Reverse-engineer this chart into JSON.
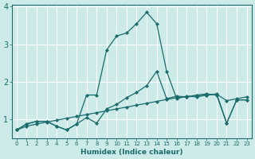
{
  "xlabel": "Humidex (Indice chaleur)",
  "bg_color": "#cceae8",
  "line_color": "#1a6b6b",
  "grid_color": "#ffffff",
  "xmin": -0.5,
  "xmax": 23.5,
  "ymin": 0.5,
  "ymax": 4.05,
  "yticks": [
    1,
    2,
    3,
    4
  ],
  "xticks": [
    0,
    1,
    2,
    3,
    4,
    5,
    6,
    7,
    8,
    9,
    10,
    11,
    12,
    13,
    14,
    15,
    16,
    17,
    18,
    19,
    20,
    21,
    22,
    23
  ],
  "line_straight_x": [
    0,
    1,
    2,
    3,
    4,
    5,
    6,
    7,
    8,
    9,
    10,
    11,
    12,
    13,
    14,
    15,
    16,
    17,
    18,
    19,
    20,
    21,
    22,
    23
  ],
  "line_straight_y": [
    0.72,
    0.82,
    0.88,
    0.93,
    0.98,
    1.03,
    1.08,
    1.13,
    1.18,
    1.23,
    1.28,
    1.33,
    1.38,
    1.43,
    1.48,
    1.53,
    1.58,
    1.6,
    1.62,
    1.65,
    1.67,
    1.5,
    1.55,
    1.6
  ],
  "line_mid_x": [
    0,
    1,
    2,
    3,
    4,
    5,
    6,
    7,
    8,
    9,
    10,
    11,
    12,
    13,
    14,
    15,
    16,
    17,
    18,
    19,
    20,
    21,
    22,
    23
  ],
  "line_mid_y": [
    0.72,
    0.88,
    0.95,
    0.95,
    0.82,
    0.72,
    0.88,
    1.05,
    0.9,
    1.28,
    1.4,
    1.58,
    1.72,
    1.9,
    2.28,
    1.55,
    1.62,
    1.6,
    1.65,
    1.68,
    1.65,
    0.9,
    1.52,
    1.52
  ],
  "line_peak_x": [
    0,
    1,
    2,
    3,
    4,
    5,
    6,
    7,
    8,
    9,
    10,
    11,
    12,
    13,
    14,
    15,
    16,
    17,
    18,
    19,
    20,
    21,
    22,
    23
  ],
  "line_peak_y": [
    0.72,
    0.88,
    0.95,
    0.95,
    0.82,
    0.72,
    0.88,
    1.65,
    1.65,
    2.85,
    3.22,
    3.3,
    3.55,
    3.85,
    3.55,
    2.28,
    1.55,
    1.62,
    1.6,
    1.65,
    1.68,
    0.9,
    1.52,
    1.52
  ]
}
